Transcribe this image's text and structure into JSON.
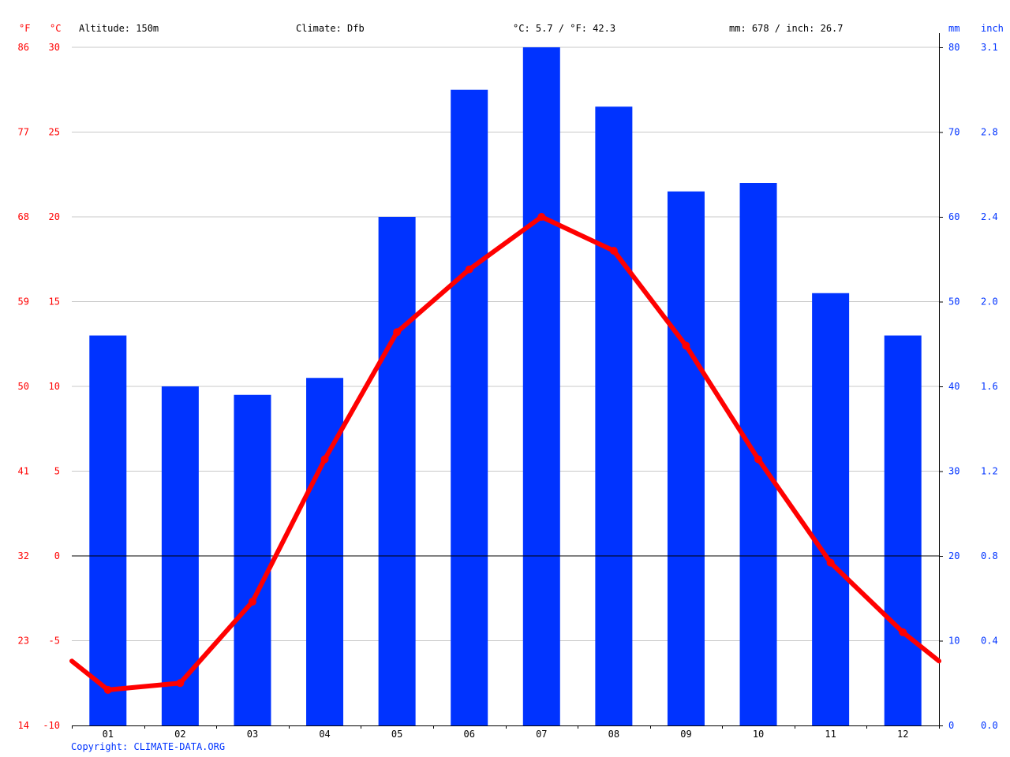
{
  "header": {
    "unit_f": "°F",
    "unit_c": "°C",
    "altitude": "Altitude: 150m",
    "climate": "Climate: Dfb",
    "temp_avg": "°C: 5.7 / °F: 42.3",
    "precip_total": "mm: 678 / inch: 26.7",
    "unit_mm": "mm",
    "unit_inch": "inch"
  },
  "copyright": "Copyright: CLIMATE-DATA.ORG",
  "colors": {
    "temperature": "#ff0000",
    "precipitation": "#0033ff",
    "grid": "#c8c8c8",
    "zero_line": "#000000"
  },
  "chart_data": {
    "type": "bar",
    "categories": [
      "01",
      "02",
      "03",
      "04",
      "05",
      "06",
      "07",
      "08",
      "09",
      "10",
      "11",
      "12"
    ],
    "series": [
      {
        "type": "bar",
        "axis": "right",
        "unit": "mm",
        "values": [
          46,
          40,
          39,
          41,
          60,
          75,
          80,
          73,
          63,
          64,
          51,
          46
        ]
      },
      {
        "type": "line",
        "axis": "left",
        "unit": "°C",
        "values": [
          -7.9,
          -7.5,
          -2.7,
          5.7,
          13.2,
          16.9,
          20.0,
          18.0,
          12.4,
          5.7,
          -0.4,
          -4.5
        ],
        "edge_start": -6.2,
        "edge_end": -6.2
      }
    ],
    "left_axis_c": {
      "range": [
        -10,
        30
      ],
      "ticks": [
        "-10",
        "-5",
        "0",
        "5",
        "10",
        "15",
        "20",
        "25",
        "30"
      ]
    },
    "left_axis_f": {
      "ticks": [
        "14",
        "23",
        "32",
        "41",
        "50",
        "59",
        "68",
        "77",
        "86"
      ]
    },
    "right_axis_mm": {
      "range": [
        0,
        80
      ],
      "ticks": [
        "0",
        "10",
        "20",
        "30",
        "40",
        "50",
        "60",
        "70",
        "80"
      ]
    },
    "right_axis_inch": {
      "ticks": [
        "0.0",
        "0.4",
        "0.8",
        "1.2",
        "1.6",
        "2.0",
        "2.4",
        "2.8",
        "3.1"
      ]
    },
    "grid": true
  }
}
